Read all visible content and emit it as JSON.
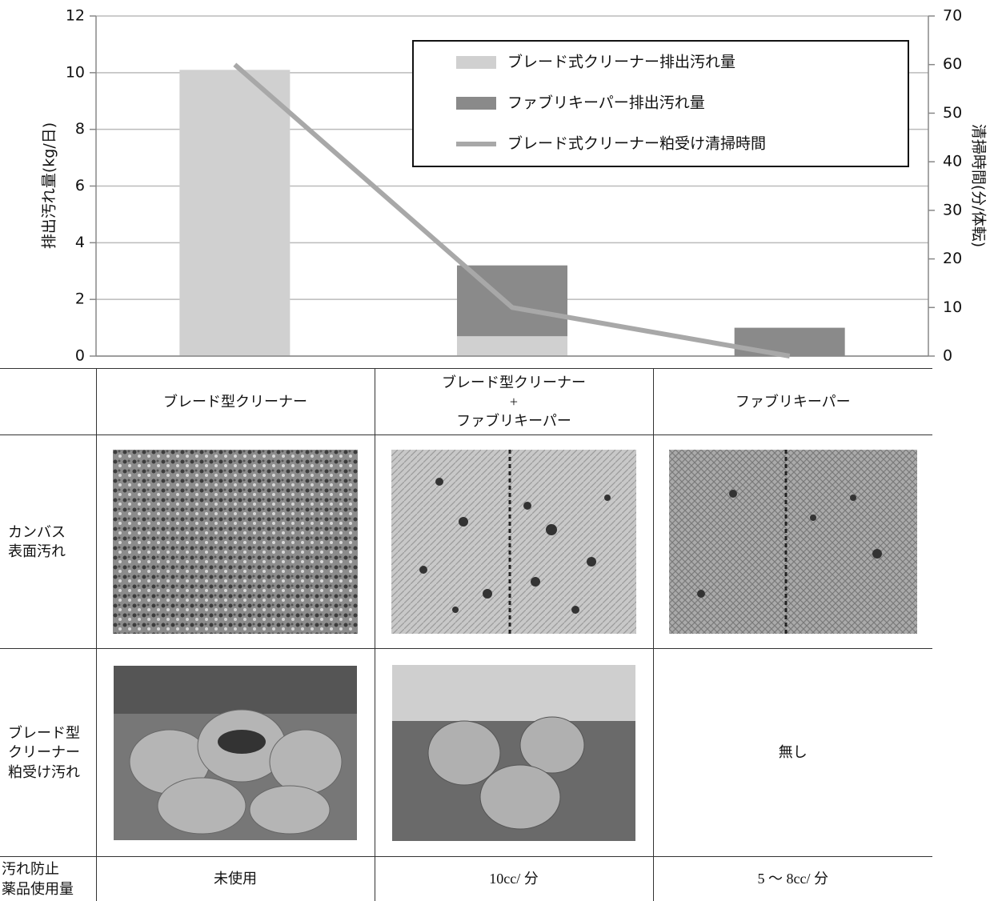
{
  "chart_data": {
    "type": "bar",
    "categories": [
      null,
      null,
      null
    ],
    "series": [
      {
        "name": "ブレード式クリーナー排出汚れ量",
        "color": "#d0d0d0",
        "values": [
          10.1,
          0.7,
          0
        ]
      },
      {
        "name": "ファブリキーパー排出汚れ量",
        "color": "#8a8a8a",
        "values": [
          0,
          2.5,
          1.0
        ]
      },
      {
        "name": "ブレード式クリーナー粕受け清掃時間",
        "color": "#a8a8a8",
        "type": "line",
        "axis": "y2",
        "values": [
          60,
          10,
          0
        ]
      }
    ],
    "y_label": "排出汚れ量(kg/日)",
    "y2_label": "清掃時間(分/体転)",
    "ylim": [
      0,
      12
    ],
    "yticks": [
      0,
      2,
      4,
      6,
      8,
      10,
      12
    ],
    "y2lim": [
      0,
      70
    ],
    "y2ticks": [
      0,
      10,
      20,
      30,
      40,
      50,
      60,
      70
    ],
    "grid": true,
    "stacked": true
  },
  "table": {
    "header": [
      "ブレード型クリーナー",
      "ブレード型クリーナー\n+\nファブリキーパー",
      "ファブリキーパー"
    ],
    "canvas_row": {
      "label": "カンバス\n表面汚れ"
    },
    "residue_row": {
      "label": "ブレード型\nクリーナー\n粕受け汚れ",
      "fabrikeeper": "無し"
    },
    "chemical_row": {
      "label": "汚れ防止\n薬品使用量",
      "values": [
        "未使用",
        "10cc/ 分",
        "5 ～ 8cc/ 分"
      ]
    }
  }
}
